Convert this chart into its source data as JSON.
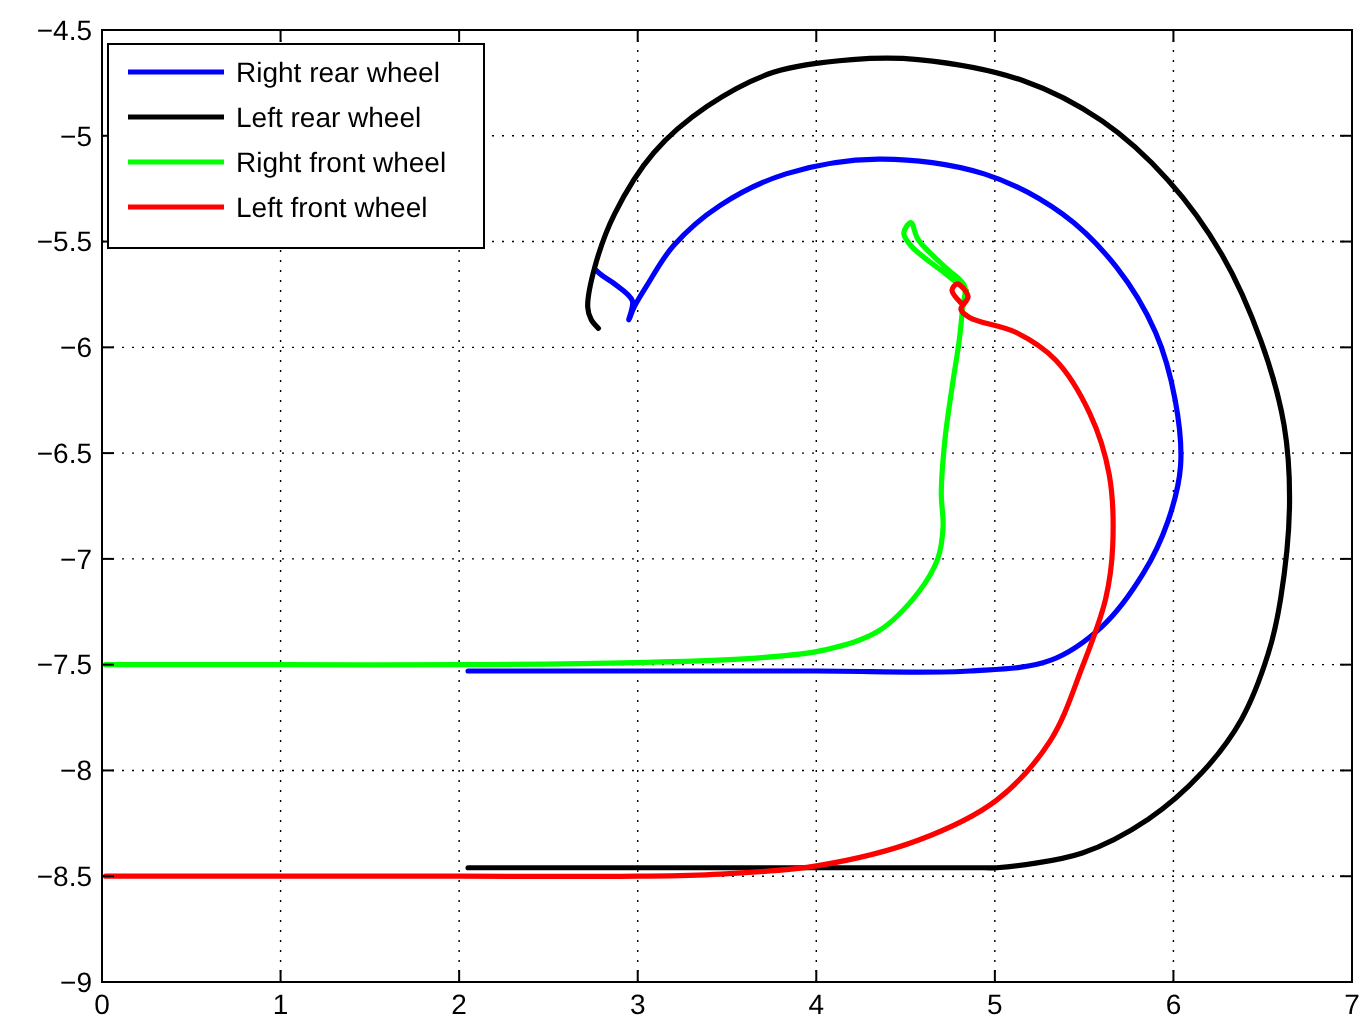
{
  "chart_data": {
    "type": "line",
    "xlim": [
      0,
      7
    ],
    "ylim": [
      -9,
      -4.5
    ],
    "xticks": [
      0,
      1,
      2,
      3,
      4,
      5,
      6,
      7
    ],
    "yticks": [
      -4.5,
      -5,
      -5.5,
      -6,
      -6.5,
      -7,
      -7.5,
      -8,
      -8.5,
      -9
    ],
    "grid": true,
    "legend": "top left",
    "line_style": "solid",
    "marker": "none",
    "series": [
      {
        "name": "Right rear wheel",
        "color": "#0000ff",
        "x": [
          2.05,
          3.0,
          4.0,
          4.86,
          5.31,
          5.6,
          5.83,
          5.97,
          6.04,
          6.01,
          5.9,
          5.68,
          5.38,
          4.94,
          4.35,
          3.83,
          3.46,
          3.2,
          3.05,
          2.98,
          2.95,
          2.97,
          2.87,
          2.8,
          2.76
        ],
        "values": [
          -7.53,
          -7.53,
          -7.53,
          -7.53,
          -7.48,
          -7.32,
          -7.07,
          -6.82,
          -6.56,
          -6.25,
          -5.93,
          -5.62,
          -5.37,
          -5.18,
          -5.11,
          -5.18,
          -5.33,
          -5.52,
          -5.71,
          -5.81,
          -5.87,
          -5.78,
          -5.7,
          -5.66,
          -5.63
        ]
      },
      {
        "name": "Left rear wheel",
        "color": "#000000",
        "x": [
          2.05,
          3.0,
          4.0,
          4.94,
          5.01,
          5.49,
          5.86,
          6.16,
          6.38,
          6.53,
          6.6,
          6.65,
          6.62,
          6.49,
          6.27,
          5.97,
          5.6,
          5.16,
          4.57,
          4.2,
          3.76,
          3.39,
          3.09,
          2.87,
          2.76,
          2.72,
          2.74,
          2.78
        ],
        "values": [
          -8.46,
          -8.46,
          -8.46,
          -8.46,
          -8.46,
          -8.39,
          -8.23,
          -8.01,
          -7.76,
          -7.45,
          -7.19,
          -6.75,
          -6.37,
          -5.97,
          -5.56,
          -5.21,
          -4.93,
          -4.74,
          -4.64,
          -4.64,
          -4.7,
          -4.86,
          -5.08,
          -5.37,
          -5.62,
          -5.81,
          -5.87,
          -5.91
        ]
      },
      {
        "name": "Right front wheel",
        "color": "#00ff00",
        "x": [
          0.02,
          1.0,
          2.0,
          2.98,
          3.64,
          4.05,
          4.35,
          4.57,
          4.68,
          4.71,
          4.7,
          4.72,
          4.76,
          4.8,
          4.82,
          4.83,
          4.72,
          4.57,
          4.53,
          4.49,
          4.53,
          4.72,
          4.84
        ],
        "values": [
          -7.5,
          -7.5,
          -7.5,
          -7.49,
          -7.47,
          -7.43,
          -7.34,
          -7.16,
          -7.0,
          -6.85,
          -6.69,
          -6.44,
          -6.19,
          -5.97,
          -5.81,
          -5.71,
          -5.62,
          -5.49,
          -5.41,
          -5.46,
          -5.52,
          -5.65,
          -5.73
        ]
      },
      {
        "name": "Left front wheel",
        "color": "#ff0000",
        "x": [
          0.02,
          1.0,
          2.0,
          3.0,
          3.46,
          4.01,
          4.57,
          5.01,
          5.31,
          5.49,
          5.62,
          5.66,
          5.64,
          5.53,
          5.34,
          5.12,
          4.86,
          4.81,
          4.85,
          4.79,
          4.76,
          4.81
        ],
        "values": [
          -8.5,
          -8.5,
          -8.5,
          -8.5,
          -8.49,
          -8.45,
          -8.33,
          -8.14,
          -7.86,
          -7.51,
          -7.19,
          -6.94,
          -6.6,
          -6.31,
          -6.06,
          -5.93,
          -5.86,
          -5.82,
          -5.76,
          -5.7,
          -5.73,
          -5.79
        ]
      }
    ]
  }
}
